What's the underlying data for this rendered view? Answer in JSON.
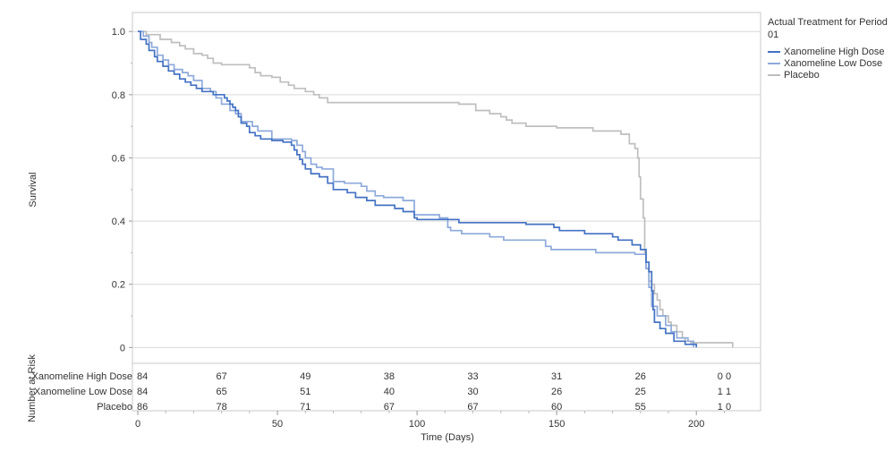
{
  "chart_data": {
    "type": "line",
    "xlabel": "Time (Days)",
    "ylabel": "Survival",
    "xlim": [
      0,
      223
    ],
    "ylim": [
      -0.05,
      1.06
    ],
    "x_ticks": [
      0,
      50,
      100,
      150,
      200
    ],
    "y_ticks": [
      0,
      0.2,
      0.4,
      0.6,
      0.8,
      1.0
    ],
    "y_tick_labels": [
      "0",
      "0.2",
      "0.4",
      "0.6",
      "0.8",
      "1.0"
    ],
    "grid": "horizontal",
    "legend": {
      "title": "Actual Treatment for Period 01",
      "position": "right"
    },
    "series": [
      {
        "name": "Xanomeline High Dose",
        "color": "#4472c4",
        "points": [
          [
            0,
            1.0
          ],
          [
            1,
            0.975
          ],
          [
            3,
            0.96
          ],
          [
            4,
            0.94
          ],
          [
            6,
            0.92
          ],
          [
            7,
            0.905
          ],
          [
            9,
            0.89
          ],
          [
            11,
            0.875
          ],
          [
            13,
            0.865
          ],
          [
            15,
            0.85
          ],
          [
            17,
            0.84
          ],
          [
            19,
            0.83
          ],
          [
            21,
            0.82
          ],
          [
            23,
            0.81
          ],
          [
            25,
            0.81
          ],
          [
            27,
            0.8
          ],
          [
            30,
            0.8
          ],
          [
            31,
            0.79
          ],
          [
            32,
            0.78
          ],
          [
            33,
            0.77
          ],
          [
            34,
            0.76
          ],
          [
            35,
            0.75
          ],
          [
            36,
            0.73
          ],
          [
            37,
            0.71
          ],
          [
            39,
            0.7
          ],
          [
            40,
            0.68
          ],
          [
            42,
            0.67
          ],
          [
            44,
            0.66
          ],
          [
            48,
            0.655
          ],
          [
            52,
            0.65
          ],
          [
            55,
            0.64
          ],
          [
            56,
            0.625
          ],
          [
            57,
            0.61
          ],
          [
            58,
            0.595
          ],
          [
            59,
            0.58
          ],
          [
            60,
            0.565
          ],
          [
            62,
            0.55
          ],
          [
            65,
            0.54
          ],
          [
            68,
            0.52
          ],
          [
            70,
            0.5
          ],
          [
            75,
            0.49
          ],
          [
            78,
            0.475
          ],
          [
            82,
            0.465
          ],
          [
            85,
            0.45
          ],
          [
            92,
            0.44
          ],
          [
            95,
            0.43
          ],
          [
            99,
            0.41
          ],
          [
            100,
            0.405
          ],
          [
            115,
            0.395
          ],
          [
            139,
            0.39
          ],
          [
            149,
            0.38
          ],
          [
            151,
            0.37
          ],
          [
            160,
            0.36
          ],
          [
            170,
            0.35
          ],
          [
            172,
            0.34
          ],
          [
            177,
            0.325
          ],
          [
            180,
            0.31
          ],
          [
            182,
            0.27
          ],
          [
            183,
            0.24
          ],
          [
            184,
            0.18
          ],
          [
            184.5,
            0.12
          ],
          [
            185,
            0.08
          ],
          [
            187,
            0.06
          ],
          [
            189,
            0.045
          ],
          [
            192,
            0.02
          ],
          [
            196,
            0.01
          ],
          [
            200,
            0.0
          ]
        ]
      },
      {
        "name": "Xanomeline Low Dose",
        "color": "#8eaadb",
        "points": [
          [
            0,
            1.0
          ],
          [
            2,
            0.985
          ],
          [
            4,
            0.965
          ],
          [
            5,
            0.95
          ],
          [
            7,
            0.925
          ],
          [
            9,
            0.91
          ],
          [
            11,
            0.895
          ],
          [
            13,
            0.88
          ],
          [
            16,
            0.87
          ],
          [
            18,
            0.86
          ],
          [
            20,
            0.845
          ],
          [
            23,
            0.82
          ],
          [
            26,
            0.81
          ],
          [
            28,
            0.79
          ],
          [
            30,
            0.77
          ],
          [
            33,
            0.75
          ],
          [
            35,
            0.74
          ],
          [
            37,
            0.715
          ],
          [
            41,
            0.7
          ],
          [
            43,
            0.685
          ],
          [
            48,
            0.66
          ],
          [
            55,
            0.655
          ],
          [
            57,
            0.64
          ],
          [
            59,
            0.62
          ],
          [
            60,
            0.6
          ],
          [
            62,
            0.58
          ],
          [
            64,
            0.57
          ],
          [
            66,
            0.565
          ],
          [
            70,
            0.525
          ],
          [
            74,
            0.52
          ],
          [
            80,
            0.51
          ],
          [
            82,
            0.495
          ],
          [
            85,
            0.48
          ],
          [
            88,
            0.475
          ],
          [
            95,
            0.465
          ],
          [
            99,
            0.42
          ],
          [
            108,
            0.41
          ],
          [
            111,
            0.38
          ],
          [
            112,
            0.37
          ],
          [
            116,
            0.36
          ],
          [
            126,
            0.35
          ],
          [
            131,
            0.34
          ],
          [
            146,
            0.32
          ],
          [
            148,
            0.31
          ],
          [
            164,
            0.3
          ],
          [
            170,
            0.3
          ],
          [
            178,
            0.295
          ],
          [
            182,
            0.25
          ],
          [
            183,
            0.19
          ],
          [
            184,
            0.13
          ],
          [
            186,
            0.1
          ],
          [
            189,
            0.07
          ],
          [
            191,
            0.05
          ],
          [
            193,
            0.03
          ],
          [
            197,
            0.02
          ],
          [
            199,
            0.0
          ]
        ]
      },
      {
        "name": "Placebo",
        "color": "#bfbfbf",
        "points": [
          [
            0,
            1.0
          ],
          [
            3,
            0.99
          ],
          [
            8,
            0.975
          ],
          [
            12,
            0.965
          ],
          [
            15,
            0.955
          ],
          [
            17,
            0.945
          ],
          [
            20,
            0.93
          ],
          [
            23,
            0.925
          ],
          [
            25,
            0.915
          ],
          [
            27,
            0.9
          ],
          [
            30,
            0.895
          ],
          [
            32,
            0.895
          ],
          [
            40,
            0.885
          ],
          [
            42,
            0.87
          ],
          [
            44,
            0.86
          ],
          [
            48,
            0.855
          ],
          [
            51,
            0.84
          ],
          [
            54,
            0.83
          ],
          [
            56,
            0.82
          ],
          [
            60,
            0.81
          ],
          [
            63,
            0.8
          ],
          [
            65,
            0.79
          ],
          [
            68,
            0.775
          ],
          [
            115,
            0.77
          ],
          [
            121,
            0.75
          ],
          [
            126,
            0.74
          ],
          [
            130,
            0.73
          ],
          [
            132,
            0.72
          ],
          [
            134,
            0.71
          ],
          [
            139,
            0.7
          ],
          [
            150,
            0.695
          ],
          [
            163,
            0.685
          ],
          [
            173,
            0.675
          ],
          [
            176,
            0.645
          ],
          [
            178,
            0.63
          ],
          [
            179,
            0.6
          ],
          [
            179.5,
            0.54
          ],
          [
            180,
            0.47
          ],
          [
            181,
            0.41
          ],
          [
            181.5,
            0.3
          ],
          [
            182,
            0.25
          ],
          [
            183,
            0.21
          ],
          [
            184,
            0.2
          ],
          [
            185,
            0.17
          ],
          [
            186,
            0.15
          ],
          [
            187,
            0.12
          ],
          [
            188,
            0.1
          ],
          [
            190,
            0.08
          ],
          [
            191,
            0.07
          ],
          [
            193,
            0.05
          ],
          [
            195,
            0.03
          ],
          [
            196,
            0.02
          ],
          [
            198,
            0.015
          ],
          [
            213,
            0.0
          ]
        ]
      }
    ],
    "risk_table": {
      "header": "Number at Risk",
      "times": [
        0,
        30,
        60,
        90,
        120,
        150,
        180,
        210
      ],
      "rows": [
        {
          "label": "Xanomeline High Dose",
          "values": [
            "84",
            "67",
            "49",
            "38",
            "33",
            "31",
            "26",
            "0 0"
          ]
        },
        {
          "label": "Xanomeline Low Dose",
          "values": [
            "84",
            "65",
            "51",
            "40",
            "30",
            "26",
            "25",
            "1 1"
          ]
        },
        {
          "label": "Placebo",
          "values": [
            "86",
            "78",
            "71",
            "67",
            "67",
            "60",
            "55",
            "1 0"
          ]
        }
      ]
    }
  }
}
